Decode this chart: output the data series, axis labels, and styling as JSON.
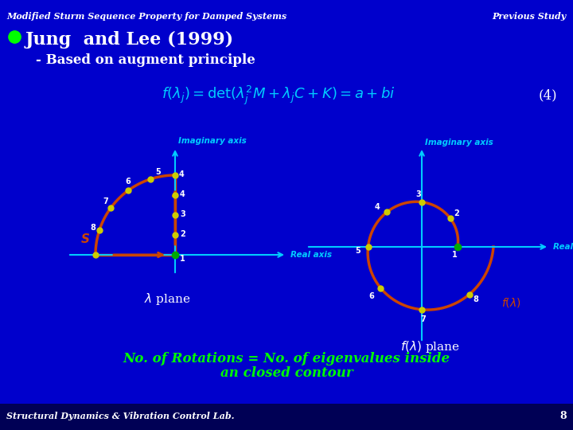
{
  "bg_color": "#0000cc",
  "title_left": "Modified Sturm Sequence Property for Damped Systems",
  "title_right": "Previous Study",
  "title_color": "#ffffff",
  "bullet_color": "#00ff00",
  "bullet_text": "Jung  and Lee (1999)",
  "subtitle": "- Based on augment principle",
  "formula_color": "#00ccff",
  "formula_label_color": "#ffffff",
  "contour_color": "#cc4400",
  "dot_color": "#cccc00",
  "dot_color_origin": "#00aa00",
  "axis_color": "#00ccff",
  "axis_label_color": "#00ccff",
  "bottom_text_color": "#00ff00",
  "bottom_text1": "No. of Rotations = No. of eigenvalues inside",
  "bottom_text2": "an closed contour",
  "footer_text": "Structural Dynamics & Vibration Control Lab.",
  "footer_page": "8",
  "footer_color": "#ffffff",
  "footer_bg": "#000055"
}
